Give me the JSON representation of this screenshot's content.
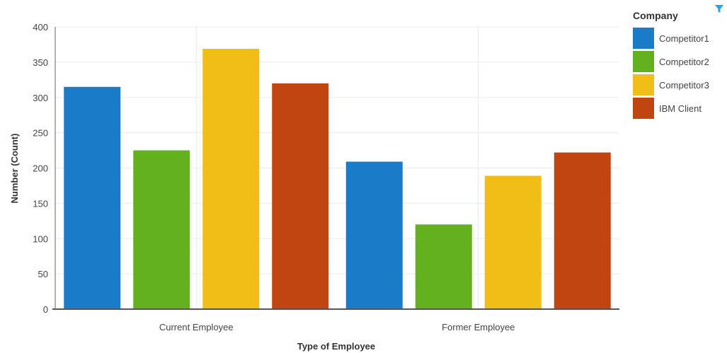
{
  "chart_data": {
    "type": "bar",
    "categories": [
      "Current Employee",
      "Former Employee"
    ],
    "series": [
      {
        "name": "Competitor1",
        "values": [
          315,
          209
        ],
        "color": "#1a7bc9"
      },
      {
        "name": "Competitor2",
        "values": [
          225,
          120
        ],
        "color": "#63b11f"
      },
      {
        "name": "Competitor3",
        "values": [
          369,
          189
        ],
        "color": "#f0be17"
      },
      {
        "name": "IBM Client",
        "values": [
          320,
          222
        ],
        "color": "#c04511"
      }
    ],
    "xlabel": "Type of Employee",
    "ylabel": "Number (Count)",
    "ylim": [
      0,
      400
    ],
    "yticks": [
      "0",
      "50",
      "100",
      "150",
      "200",
      "250",
      "300",
      "350",
      "400"
    ],
    "grid": true,
    "legend": {
      "title": "Company",
      "placement": "right"
    }
  },
  "icons": {
    "filter": "filter-icon",
    "filter_color": "#2aa0e8"
  }
}
